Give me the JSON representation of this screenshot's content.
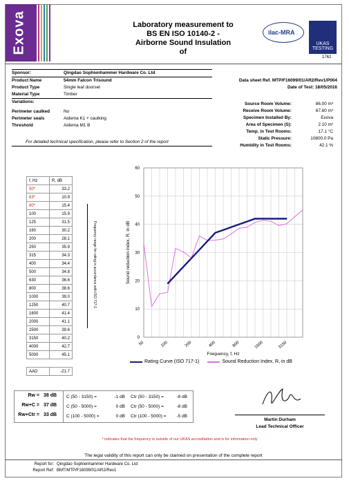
{
  "header": {
    "logo_text": "Exova",
    "title_lines": [
      "Laboratory measurement to",
      "BS EN ISO 10140-2 -",
      "Airborne Sound Insulation of"
    ],
    "ilac_text": "ilac-MRA",
    "ukas_text": "UKAS TESTING",
    "ukas_number": "1762"
  },
  "sponsor": {
    "sponsor_label": "Sponsor:",
    "sponsor_value": "Qingdao Sophienhammer Hardware Co. Ltd",
    "product_name_label": "Product Name",
    "product_name_value": "54mm Falcon Trisound",
    "product_type_label": "Product Type",
    "product_type_value": "Single leaf doorset",
    "material_label": "Material Type",
    "material_value": "Timber",
    "variations_label": "Variations:",
    "caulked_label": "Perimeter caulked",
    "caulked_value": "No",
    "seals_label": "Perimeter seals",
    "seals_value": "Aidema K1 + caulking",
    "threshold_label": "Threshold",
    "threshold_value": "Aidema M1 B",
    "note": "For detailed technical specification, please refer to Section 2 of the report"
  },
  "right_info": {
    "datasheet": "Data sheet Ref. MTP/F16099/01/AR2/Rev1/P004",
    "date": "Date of Test: 18/05/2016",
    "rows": [
      {
        "label": "Source Room Volume:",
        "value": "86.00 m³"
      },
      {
        "label": "Receive Room Volume:",
        "value": "67.80 m³"
      },
      {
        "label": "Specimen Installed By:",
        "value": "Exova"
      },
      {
        "label": "Area of Specimen (S):",
        "value": "2.10 m²"
      },
      {
        "label": "Temp. in Test Rooms:",
        "value": "17.1 °C"
      },
      {
        "label": "Static Pressure:",
        "value": "10800.0 Pa"
      },
      {
        "label": "Humidity in Test Rooms:",
        "value": "42.1 %"
      }
    ]
  },
  "freq_table": {
    "head_f": "f, Hz",
    "head_r": "R, dB",
    "side_note": "Frequency range for rating in accordance with ISO 717-1",
    "rows": [
      {
        "f": "50",
        "r": "33.2",
        "flag": true
      },
      {
        "f": "63",
        "r": "10.9",
        "flag": true
      },
      {
        "f": "80",
        "r": "15.4",
        "flag": true
      },
      {
        "f": "100",
        "r": "15.9"
      },
      {
        "f": "125",
        "r": "31.5"
      },
      {
        "f": "160",
        "r": "30.2"
      },
      {
        "f": "200",
        "r": "28.1"
      },
      {
        "f": "250",
        "r": "35.9"
      },
      {
        "f": "315",
        "r": "34.3"
      },
      {
        "f": "400",
        "r": "34.4"
      },
      {
        "f": "500",
        "r": "34.8"
      },
      {
        "f": "630",
        "r": "36.6"
      },
      {
        "f": "800",
        "r": "38.6"
      },
      {
        "f": "1000",
        "r": "39.0"
      },
      {
        "f": "1250",
        "r": "40.7"
      },
      {
        "f": "1600",
        "r": "41.4"
      },
      {
        "f": "2000",
        "r": "41.1"
      },
      {
        "f": "2500",
        "r": "39.6"
      },
      {
        "f": "3150",
        "r": "40.2"
      },
      {
        "f": "4000",
        "r": "42.7"
      },
      {
        "f": "5000",
        "r": "45.1"
      }
    ],
    "aad_label": "AAD",
    "aad_value": "-21.7"
  },
  "chart_data": {
    "type": "line",
    "x": [
      50,
      63,
      80,
      100,
      125,
      160,
      200,
      250,
      315,
      400,
      500,
      630,
      800,
      1000,
      1250,
      1600,
      2000,
      2500,
      3150,
      4000,
      5000
    ],
    "xticks": [
      "50",
      "100",
      "200",
      "400",
      "800",
      "1600",
      "3150"
    ],
    "xlabel": "Frequency, f, Hz",
    "ylabel": "Sound reduction index, R, in dB",
    "ylim": [
      0,
      60
    ],
    "yticks": [
      0,
      10,
      20,
      30,
      40,
      50,
      60
    ],
    "series": [
      {
        "name": "Rating Curve (ISO 717-1)",
        "color": "#1a1a7a",
        "x": [
          100,
          125,
          160,
          200,
          250,
          315,
          400,
          500,
          630,
          800,
          1000,
          1250,
          1600,
          2000,
          2500,
          3150
        ],
        "values": [
          19,
          22,
          25,
          28,
          31,
          34,
          37,
          38,
          39,
          40,
          41,
          42,
          42,
          42,
          42,
          42
        ]
      },
      {
        "name": "Sound Reduction Index, R, in dB",
        "color": "#e070e0",
        "x": [
          50,
          63,
          80,
          100,
          125,
          160,
          200,
          250,
          315,
          400,
          500,
          630,
          800,
          1000,
          1250,
          1600,
          2000,
          2500,
          3150,
          4000,
          5000
        ],
        "values": [
          33.2,
          10.9,
          15.4,
          15.9,
          31.5,
          30.2,
          28.1,
          35.9,
          34.3,
          34.4,
          34.8,
          36.6,
          38.6,
          39.0,
          40.7,
          41.4,
          41.1,
          39.6,
          40.2,
          42.7,
          45.1
        ]
      }
    ]
  },
  "ratings": {
    "rw_label": "Rw =",
    "rw_value": "38 dB",
    "rwc_label": "Rw+C =",
    "rwc_value": "37 dB",
    "rwctr_label": "Rw+Ctr =",
    "rwctr_value": "33 dB",
    "c_rows": [
      {
        "c_label": "C (50 - 3150) =",
        "c_value": "-1 dB",
        "ctr_label": "Ctr (50 - 3150) =",
        "ctr_value": "-8 dB"
      },
      {
        "c_label": "C (50 - 5000) =",
        "c_value": "0 dB",
        "ctr_label": "Ctr (50 - 5000) =",
        "ctr_value": "-8 dB"
      },
      {
        "c_label": "C (100 - 5000) =",
        "c_value": "0 dB",
        "ctr_label": "Ctr (100 - 5000) =",
        "ctr_value": "-5 dB"
      }
    ]
  },
  "signatory": {
    "name": "Martin Durham",
    "title": "Lead Technical Officer"
  },
  "footer": {
    "ukas_note": "* indicates that the frequency is outside of our UKAS accreditation and is for information only",
    "validity": "The legal validity of this report can only be claimed on presentation of the complete report",
    "report_for_label": "Report for:",
    "report_for_value": "Qingdao Sophienhammer Hardware Co. Ltd",
    "report_ref_label": "Report Ref:",
    "report_ref_value": "BMT/MTP/F16099/01/AR2/Rev1"
  }
}
